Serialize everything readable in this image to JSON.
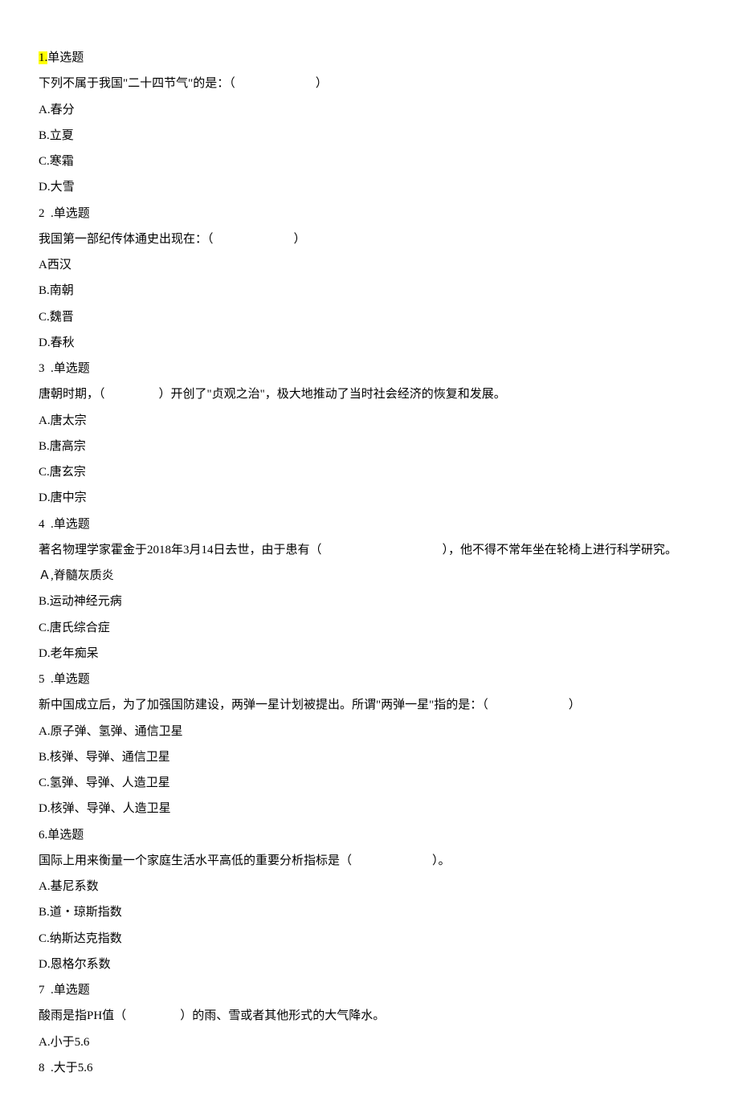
{
  "q1": {
    "heading_num": "1.",
    "heading_label": "单选题",
    "stem_prefix": "下列不属于我国\"二十四节气\"的是：（",
    "stem_suffix": "）",
    "optA": "A.春分",
    "optB": "B.立夏",
    "optC": "C.寒霜",
    "optD": "D.大雪"
  },
  "q2": {
    "heading": "2  .单选题",
    "stem_prefix": "我国第一部纪传体通史出现在：（",
    "stem_suffix": "）",
    "optA": "A西汉",
    "optB": "B.南朝",
    "optC": "C.魏晋",
    "optD": "D.春秋"
  },
  "q3": {
    "heading": "3  .单选题",
    "stem_prefix": "唐朝时期，（",
    "stem_suffix": "）开创了\"贞观之治\"，极大地推动了当时社会经济的恢复和发展。",
    "optA": "A.唐太宗",
    "optB": "B.唐高宗",
    "optC": "C.唐玄宗",
    "optD": "D.唐中宗"
  },
  "q4": {
    "heading": "4  .单选题",
    "stem_prefix": "著名物理学家霍金于2018年3月14日去世，由于患有（",
    "stem_suffix": "），他不得不常年坐在轮椅上进行科学研究。",
    "optA": "Ａ,脊髓灰质炎",
    "optB": "B.运动神经元病",
    "optC": "C.唐氏综合症",
    "optD": "D.老年痴呆"
  },
  "q5": {
    "heading": "5  .单选题",
    "stem_prefix": "新中国成立后，为了加强国防建设，两弹一星计划被提出。所谓\"两弹一星\"指的是：（",
    "stem_suffix": "）",
    "optA": "A.原子弹、氢弹、通信卫星",
    "optB": "B.核弹、导弹、通信卫星",
    "optC": "C.氢弹、导弹、人造卫星",
    "optD": "D.核弹、导弹、人造卫星"
  },
  "q6": {
    "heading": "6.单选题",
    "stem_prefix": "国际上用来衡量一个家庭生活水平高低的重要分析指标是（",
    "stem_suffix": "）。",
    "optA": "A.基尼系数",
    "optB": "B.道・琼斯指数",
    "optC": "C.纳斯达克指数",
    "optD": "D.恩格尔系数"
  },
  "q7": {
    "heading": "7  .单选题",
    "stem_prefix": "酸雨是指PH值（",
    "stem_suffix": "）的雨、雪或者其他形式的大气降水。",
    "optA": "A.小于5.6",
    "optB": "8  .大于5.6"
  }
}
